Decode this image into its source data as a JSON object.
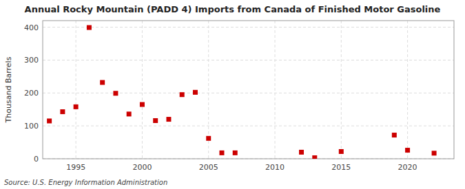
{
  "chart_data": {
    "type": "scatter",
    "title": "Annual Rocky Mountain (PADD 4) Imports from Canada of Finished Motor Gasoline",
    "y_label": "Thousand Barrels",
    "annotations": [
      "Source: U.S. Energy Information Administration"
    ],
    "x": [
      1993,
      1994,
      1995,
      1996,
      1997,
      1998,
      1999,
      2000,
      2001,
      2002,
      2003,
      2004,
      2005,
      2006,
      2007,
      2012,
      2013,
      2015,
      2019,
      2020,
      2022
    ],
    "values": [
      115,
      143,
      158,
      399,
      232,
      199,
      136,
      165,
      116,
      120,
      195,
      202,
      62,
      18,
      18,
      20,
      3,
      22,
      72,
      26,
      17
    ],
    "color": "#cc0000",
    "marker": "square",
    "xlim": [
      1992.5,
      2023.5
    ],
    "ylim": [
      0,
      420
    ],
    "xticks": [
      1995,
      2000,
      2005,
      2010,
      2015,
      2020
    ],
    "yticks": [
      0,
      100,
      200,
      300,
      400
    ],
    "grid": true
  }
}
